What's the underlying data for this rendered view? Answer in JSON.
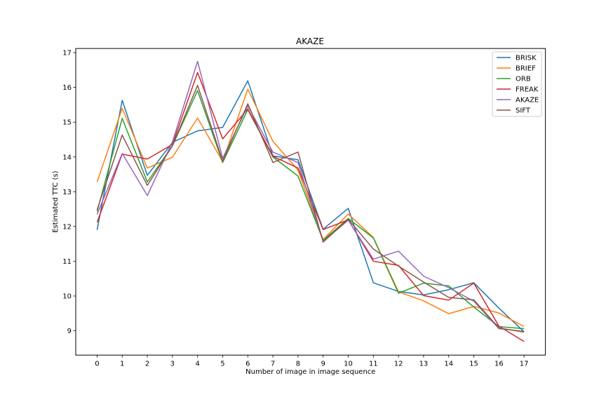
{
  "chart_data": {
    "type": "line",
    "title": "AKAZE",
    "xlabel": "Number of image in image sequence",
    "ylabel": "Estimated TTC (s)",
    "x": [
      0,
      1,
      2,
      3,
      4,
      5,
      6,
      7,
      8,
      9,
      10,
      11,
      12,
      13,
      14,
      15,
      16,
      17
    ],
    "xlim": [
      -0.85,
      17.85
    ],
    "ylim": [
      8.3,
      17.12
    ],
    "yticks": [
      9,
      10,
      11,
      12,
      13,
      14,
      15,
      16,
      17
    ],
    "grid": false,
    "legend_position": "top-right",
    "series": [
      {
        "name": "BRISK",
        "color": "#1f77b4",
        "values": [
          11.9,
          15.63,
          13.47,
          14.42,
          14.75,
          14.85,
          16.19,
          14.03,
          13.92,
          11.92,
          12.52,
          10.38,
          10.13,
          10.03,
          10.18,
          10.38,
          9.65,
          8.97
        ]
      },
      {
        "name": "BRIEF",
        "color": "#ff7f0e",
        "values": [
          13.28,
          15.4,
          13.68,
          13.99,
          15.12,
          13.87,
          15.95,
          14.45,
          13.62,
          11.62,
          12.36,
          11.68,
          10.12,
          9.86,
          9.49,
          9.7,
          9.51,
          9.12
        ]
      },
      {
        "name": "ORB",
        "color": "#2ca02c",
        "values": [
          12.43,
          15.11,
          13.28,
          14.32,
          15.91,
          13.84,
          15.36,
          14.0,
          13.45,
          11.6,
          12.23,
          11.67,
          10.08,
          10.37,
          10.29,
          9.68,
          9.12,
          9.06
        ]
      },
      {
        "name": "FREAK",
        "color": "#d62728",
        "values": [
          12.12,
          14.08,
          13.94,
          14.36,
          16.43,
          14.52,
          15.38,
          14.02,
          13.68,
          11.91,
          12.19,
          11.0,
          10.88,
          10.01,
          9.88,
          10.37,
          9.13,
          8.69
        ]
      },
      {
        "name": "AKAZE",
        "color": "#9467bd",
        "values": [
          12.35,
          14.1,
          12.89,
          14.43,
          16.75,
          13.96,
          15.47,
          14.14,
          13.84,
          11.57,
          12.18,
          11.06,
          11.29,
          10.57,
          10.24,
          9.85,
          9.06,
          8.98
        ]
      },
      {
        "name": "SIFT",
        "color": "#8c564b",
        "values": [
          12.48,
          14.63,
          13.18,
          14.32,
          16.06,
          13.88,
          15.53,
          13.84,
          14.14,
          11.55,
          12.21,
          11.35,
          10.86,
          10.4,
          9.96,
          9.89,
          9.08,
          8.96
        ]
      }
    ]
  }
}
